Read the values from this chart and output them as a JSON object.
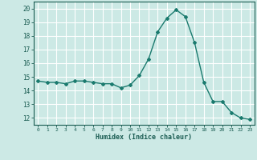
{
  "x": [
    0,
    1,
    2,
    3,
    4,
    5,
    6,
    7,
    8,
    9,
    10,
    11,
    12,
    13,
    14,
    15,
    16,
    17,
    18,
    19,
    20,
    21,
    22,
    23
  ],
  "y": [
    14.7,
    14.6,
    14.6,
    14.5,
    14.7,
    14.7,
    14.6,
    14.5,
    14.5,
    14.2,
    14.4,
    15.1,
    16.3,
    18.3,
    19.3,
    19.9,
    19.4,
    17.5,
    14.6,
    13.2,
    13.2,
    12.4,
    12.0,
    11.9
  ],
  "xlabel": "Humidex (Indice chaleur)",
  "ylim": [
    11.5,
    20.5
  ],
  "xlim": [
    -0.5,
    23.5
  ],
  "yticks": [
    12,
    13,
    14,
    15,
    16,
    17,
    18,
    19,
    20
  ],
  "xticks": [
    0,
    1,
    2,
    3,
    4,
    5,
    6,
    7,
    8,
    9,
    10,
    11,
    12,
    13,
    14,
    15,
    16,
    17,
    18,
    19,
    20,
    21,
    22,
    23
  ],
  "line_color": "#1a7a6e",
  "marker": "D",
  "marker_size": 2,
  "bg_color": "#cce9e5",
  "grid_color": "#ffffff",
  "tick_color": "#1a5c52",
  "label_color": "#1a5c52",
  "font_family": "monospace"
}
